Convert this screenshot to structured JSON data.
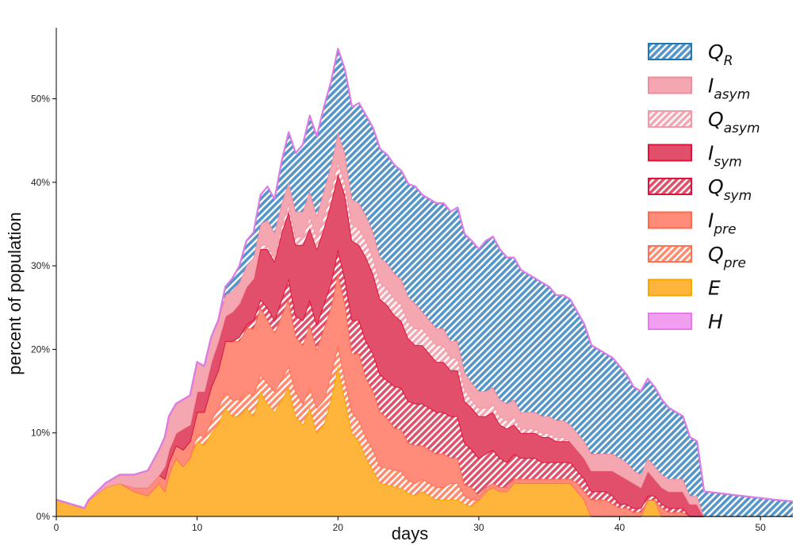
{
  "chart_data": {
    "type": "area",
    "stacked": true,
    "xlabel": "days",
    "ylabel": "percent of population",
    "xlim": [
      0,
      52.3
    ],
    "ylim": [
      0,
      58.5
    ],
    "x_ticks": [
      0,
      10,
      20,
      30,
      40,
      50
    ],
    "y_ticks": [
      0,
      10,
      20,
      30,
      40,
      50
    ],
    "y_tick_format": "%",
    "grid": false,
    "legend_position": "top-right",
    "x": [
      0,
      1,
      2,
      2.3,
      3.5,
      4.5,
      5.5,
      6.5,
      7.3,
      7.7,
      8,
      8.5,
      9,
      9.5,
      10,
      10.5,
      11,
      11.5,
      12,
      12.5,
      13,
      13.5,
      14,
      14.5,
      15,
      15.5,
      16,
      16.5,
      17,
      17.5,
      18,
      18.5,
      19,
      19.5,
      20,
      20.5,
      21,
      21.5,
      22,
      22.5,
      23,
      23.5,
      24,
      24.5,
      25,
      25.5,
      26,
      26.5,
      27,
      27.5,
      28,
      28.5,
      29,
      29.5,
      30,
      30.5,
      31,
      31.5,
      32,
      32.5,
      33,
      33.5,
      34,
      34.5,
      35,
      35.5,
      36,
      36.5,
      37,
      37.5,
      38,
      38.5,
      39,
      39.5,
      40,
      40.5,
      41,
      41.5,
      42,
      42.5,
      43,
      43.5,
      44,
      44.5,
      45,
      45.5,
      46,
      47,
      48,
      49,
      50,
      51,
      52.3
    ],
    "series": [
      {
        "name": "E",
        "hatched": false,
        "color": "#ffb43c",
        "edge": "#f5a800",
        "values": [
          2,
          1.5,
          1,
          2,
          3.5,
          4,
          3,
          2.5,
          4,
          3,
          5,
          7,
          6,
          7,
          9,
          8.5,
          10,
          11,
          13,
          12,
          12,
          13,
          12,
          15,
          13.5,
          12.5,
          14,
          15.5,
          12,
          11,
          13,
          10,
          11,
          14,
          18,
          14,
          10,
          9,
          7,
          5.5,
          4,
          3.8,
          3.6,
          3.4,
          2.8,
          2.5,
          3,
          2.5,
          2,
          2,
          2,
          2,
          1.5,
          1.2,
          2,
          3,
          3.5,
          3,
          3,
          4,
          4,
          4,
          4,
          4,
          4,
          4,
          4,
          4,
          3,
          2,
          0,
          0,
          0,
          0,
          0,
          0,
          0,
          0,
          2,
          2,
          0,
          0,
          0,
          0,
          0,
          0,
          0,
          0,
          0,
          0,
          0,
          0,
          0
        ]
      },
      {
        "name": "Q_pre",
        "hatched": true,
        "color": "#ff8c6e",
        "edge": "#ff7256",
        "values": [
          0,
          0,
          0,
          0,
          0,
          0,
          0,
          0,
          0,
          0,
          0,
          0,
          0,
          0,
          1,
          1,
          1.5,
          2,
          2,
          2,
          2,
          2,
          2.5,
          2,
          2.5,
          2.5,
          2.5,
          2.5,
          3,
          2.5,
          2.5,
          3,
          3,
          3,
          2.5,
          2.5,
          2.5,
          2.5,
          2.5,
          2.5,
          2,
          2,
          2,
          2,
          1.5,
          1.5,
          1.5,
          1.5,
          1.5,
          1.5,
          2,
          2,
          1,
          0.8,
          0,
          0,
          0,
          0,
          0,
          0,
          0,
          0,
          0,
          0,
          0,
          0,
          0,
          0,
          0,
          0,
          0,
          0,
          0,
          0,
          0,
          0,
          0,
          0,
          0,
          0,
          0,
          0,
          0,
          0,
          0,
          0,
          0,
          0,
          0,
          0,
          0,
          0,
          0
        ]
      },
      {
        "name": "I_pre",
        "hatched": false,
        "color": "#ff8c7a",
        "edge": "#ff6a4d",
        "values": [
          0,
          0,
          0,
          0,
          0,
          0,
          0.5,
          1,
          1,
          1.5,
          1.5,
          1.5,
          2,
          2,
          2.5,
          3,
          4,
          4.5,
          6,
          7,
          7,
          7.5,
          8,
          8,
          7.5,
          7,
          7.5,
          8,
          6.5,
          7,
          7.5,
          7,
          8.5,
          8,
          8.5,
          9,
          7,
          8,
          7,
          7,
          6.5,
          6,
          5,
          5,
          4.5,
          4.5,
          4,
          4,
          4,
          4,
          3,
          3,
          1.3,
          1.5,
          0.5,
          0.5,
          0.5,
          0.5,
          0.5,
          0.5,
          0.5,
          0.5,
          0.5,
          0.5,
          0.5,
          0.5,
          0.5,
          0.5,
          1,
          1,
          2,
          2,
          2,
          1.5,
          1,
          1,
          0.5,
          0.5,
          0,
          0,
          1,
          0.5,
          0.5,
          0.5,
          0,
          0,
          0,
          0,
          0,
          0,
          0,
          0,
          0
        ]
      },
      {
        "name": "Q_sym",
        "hatched": true,
        "color": "#e0506a",
        "edge": "#dc143c",
        "values": [
          0,
          0,
          0,
          0,
          0,
          0,
          0,
          0,
          0,
          0,
          0,
          0,
          0,
          0,
          0,
          0,
          0,
          0,
          0,
          0,
          0.5,
          0.5,
          1,
          1,
          1.5,
          1.5,
          2,
          2.5,
          2.5,
          3,
          3,
          3,
          3,
          3,
          3,
          3,
          4,
          4,
          4.5,
          4.5,
          4.5,
          4.5,
          5,
          5,
          5,
          5,
          5,
          5,
          5,
          5,
          5,
          5,
          5,
          4.5,
          4.5,
          4,
          4,
          3.5,
          3,
          3,
          2.5,
          2.5,
          2.5,
          2,
          2,
          2,
          2,
          2,
          1.5,
          1.5,
          1,
          1,
          1,
          1,
          0.5,
          0.5,
          0.5,
          0.5,
          0.5,
          0.5,
          0.5,
          0.5,
          0.5,
          0.5,
          0,
          0,
          0,
          0,
          0,
          0,
          0,
          0,
          0
        ]
      },
      {
        "name": "I_sym",
        "hatched": false,
        "color": "#e24f6b",
        "edge": "#dc143c",
        "values": [
          0,
          0,
          0,
          0,
          0,
          0,
          0,
          0,
          0,
          1.5,
          1.5,
          1.5,
          2.5,
          2,
          2.5,
          2.5,
          3,
          3.5,
          3,
          3.5,
          4,
          4.5,
          5,
          6,
          7,
          7,
          8,
          8,
          8.5,
          9,
          8.5,
          9,
          9,
          9.5,
          9,
          10,
          9.5,
          9,
          10,
          9.5,
          9,
          9,
          8.5,
          8,
          7.5,
          7,
          7,
          6.5,
          6,
          6,
          5.5,
          5.5,
          5,
          5,
          5,
          4.5,
          4.5,
          4,
          4,
          3.5,
          3,
          3,
          3,
          3,
          3,
          2.5,
          2.5,
          2.5,
          2.5,
          2.5,
          2.5,
          2.5,
          2.5,
          3,
          3.5,
          3,
          3,
          2.5,
          3,
          2,
          2,
          2,
          2,
          2,
          1.5,
          1.5,
          0,
          0,
          0,
          0,
          0,
          0,
          0
        ]
      },
      {
        "name": "Q_asym",
        "hatched": true,
        "color": "#f2a8b2",
        "edge": "#f29aa5",
        "values": [
          0,
          0,
          0,
          0,
          0,
          0,
          0,
          0,
          0,
          0,
          0,
          0,
          0,
          0,
          0,
          0,
          0,
          0,
          0,
          0,
          0,
          0,
          0,
          0.5,
          0.5,
          0.5,
          1,
          1,
          1,
          1,
          1.5,
          1.5,
          1.5,
          1.5,
          1.5,
          1.5,
          2,
          2,
          2,
          2,
          2,
          2,
          2,
          2,
          2,
          2,
          2,
          2,
          2,
          2,
          1.5,
          1.5,
          1.5,
          1,
          1,
          1,
          1,
          1,
          1,
          1,
          0.5,
          0.5,
          0.5,
          0.5,
          0.5,
          0.5,
          0.5,
          0,
          0,
          0,
          0,
          0,
          0,
          0,
          0,
          0,
          0,
          0,
          0,
          0,
          0,
          0,
          0,
          0,
          0,
          0,
          0,
          0,
          0,
          0,
          0,
          0,
          0
        ]
      },
      {
        "name": "I_asym",
        "hatched": false,
        "color": "#f4a6b1",
        "edge": "#f08c9c",
        "values": [
          0,
          0,
          0,
          0,
          0.5,
          1,
          1.5,
          2,
          3,
          3.5,
          4,
          3.5,
          3.5,
          3.5,
          3.5,
          3,
          3,
          2.5,
          2.5,
          2.5,
          2.5,
          2.5,
          2.5,
          2.5,
          3,
          3,
          2.5,
          2.5,
          3,
          3,
          3,
          2.5,
          3,
          3,
          3.5,
          3.5,
          3,
          3,
          3,
          3,
          3,
          3,
          3,
          3,
          3,
          3,
          2,
          2,
          2,
          2,
          2,
          2,
          2,
          2,
          2,
          2,
          2,
          2,
          2,
          2,
          2,
          2,
          2,
          2,
          2,
          2,
          2,
          2,
          2,
          2,
          2,
          2,
          2,
          2,
          2,
          2,
          1.5,
          1.5,
          1.5,
          1.5,
          1.5,
          1.5,
          1.5,
          1.5,
          1,
          1,
          0,
          0,
          0,
          0,
          0,
          0,
          0
        ]
      },
      {
        "name": "Q_R",
        "hatched": true,
        "color": "#5595c8",
        "edge": "#1f77b4",
        "values": [
          0,
          0,
          0,
          0,
          0,
          0,
          0,
          0,
          0,
          0,
          0,
          0,
          0,
          0,
          0,
          0,
          0,
          0,
          1,
          1.5,
          2,
          3,
          3,
          3.5,
          4,
          4,
          5,
          6,
          7,
          8,
          9,
          9.5,
          10,
          10,
          10,
          10,
          11,
          12,
          12,
          12.5,
          13,
          13,
          13,
          13,
          13.5,
          14,
          14,
          14.5,
          15,
          15,
          15.5,
          16,
          16.5,
          17,
          17,
          18,
          18,
          18,
          17.5,
          17,
          17,
          16.5,
          16,
          16,
          15.5,
          15,
          15,
          15,
          14.5,
          14,
          13,
          12.5,
          12,
          11.5,
          11,
          10.5,
          10,
          10,
          9.5,
          9.5,
          9,
          8.5,
          8,
          7.5,
          7,
          6.5,
          3,
          2.8,
          2.6,
          2.4,
          2.2,
          2,
          1.8
        ]
      },
      {
        "name": "H",
        "hatched": false,
        "color": "#f09ef0",
        "edge": "#e879e8",
        "values": [
          0,
          0,
          0,
          0,
          0,
          0,
          0,
          0,
          0,
          0,
          0,
          0,
          0,
          0,
          0,
          0,
          0,
          0,
          0,
          0,
          0,
          0,
          0,
          0,
          0,
          0,
          0,
          0,
          0,
          0,
          0,
          0,
          0,
          0,
          0,
          0,
          0,
          0,
          0,
          0,
          0,
          0,
          0,
          0,
          0,
          0,
          0,
          0,
          0,
          0,
          0,
          0,
          0,
          0,
          0,
          0,
          0,
          0,
          0,
          0,
          0,
          0,
          0,
          0,
          0,
          0,
          0,
          0,
          0,
          0,
          0,
          0,
          0,
          0,
          0,
          0,
          0,
          0,
          0,
          0,
          0,
          0,
          0,
          0,
          0,
          0,
          0,
          0,
          0,
          0,
          0,
          0,
          0
        ]
      }
    ],
    "legend": [
      {
        "series": "Q_R",
        "base": "Q",
        "sub": "R"
      },
      {
        "series": "I_asym",
        "base": "I",
        "sub": "asym"
      },
      {
        "series": "Q_asym",
        "base": "Q",
        "sub": "asym"
      },
      {
        "series": "I_sym",
        "base": "I",
        "sub": "sym"
      },
      {
        "series": "Q_sym",
        "base": "Q",
        "sub": "sym"
      },
      {
        "series": "I_pre",
        "base": "I",
        "sub": "pre"
      },
      {
        "series": "Q_pre",
        "base": "Q",
        "sub": "pre"
      },
      {
        "series": "E",
        "base": "E",
        "sub": ""
      },
      {
        "series": "H",
        "base": "H",
        "sub": ""
      }
    ]
  }
}
